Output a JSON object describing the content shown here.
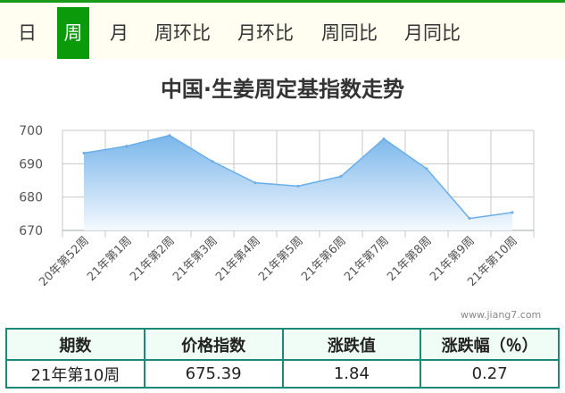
{
  "tabs": [
    {
      "label": "日"
    },
    {
      "label": "周",
      "active": true
    },
    {
      "label": "月"
    },
    {
      "label": "周环比"
    },
    {
      "label": "月环比"
    },
    {
      "label": "周同比"
    },
    {
      "label": "月同比"
    }
  ],
  "chart_title": "中国·生姜周定基指数走势",
  "watermark": "www.jiang7.com",
  "chart_data": {
    "type": "area",
    "categories": [
      "20年第52周",
      "21年第1周",
      "21年第2周",
      "21年第3周",
      "21年第4周",
      "21年第5周",
      "21年第6周",
      "21年第7周",
      "21年第8周",
      "21年第9周",
      "21年第10周"
    ],
    "values": [
      693.2,
      695.3,
      698.5,
      690.7,
      684.3,
      683.3,
      686.2,
      697.5,
      688.5,
      673.6,
      675.39
    ],
    "ylim": [
      670,
      700
    ],
    "yticks": [
      670,
      680,
      690,
      700
    ],
    "grid": true,
    "colors": {
      "line": "#6aaee8",
      "fill_top": "#7ab6ea",
      "fill_bottom": "#f4f9ff",
      "grid": "#c8c8c8"
    }
  },
  "table": {
    "headers": [
      "期数",
      "价格指数",
      "涨跌值",
      "涨跌幅（％）"
    ],
    "row": [
      "21年第10周",
      "675.39",
      "1.84",
      "0.27"
    ]
  }
}
